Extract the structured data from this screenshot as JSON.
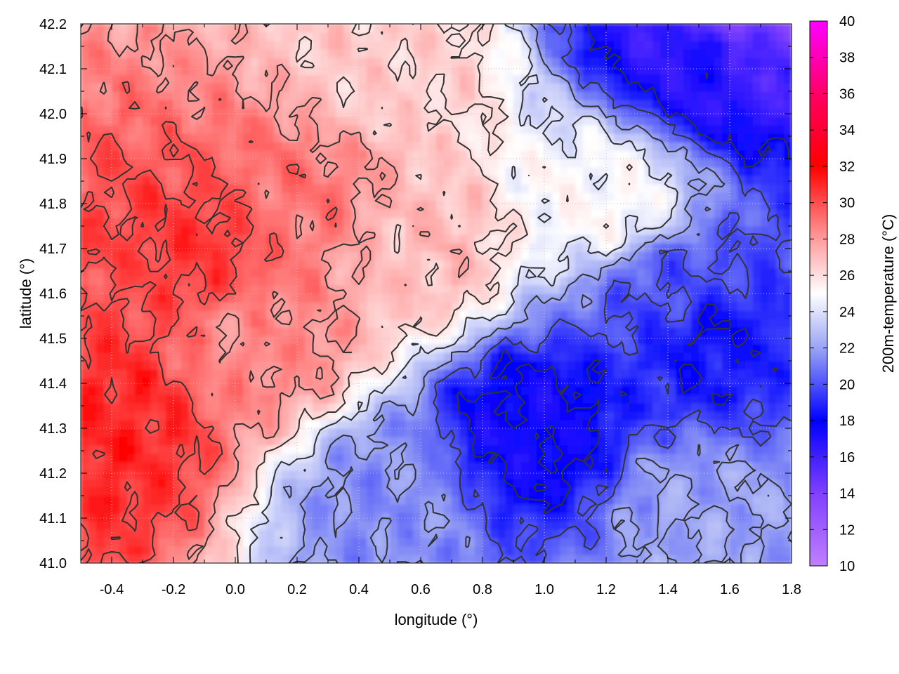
{
  "chart_data": {
    "type": "heatmap",
    "xlabel": "longitude (°)",
    "ylabel": "latitude (°)",
    "colorbar_label": "200m-temperature (°C)",
    "xlim": [
      -0.5,
      1.8
    ],
    "ylim": [
      41.0,
      42.2
    ],
    "x_ticks": [
      "-0.4",
      "-0.2",
      "0.0",
      "0.2",
      "0.4",
      "0.6",
      "0.8",
      "1.0",
      "1.2",
      "1.4",
      "1.6",
      "1.8"
    ],
    "x_tick_values": [
      -0.4,
      -0.2,
      0.0,
      0.2,
      0.4,
      0.6,
      0.8,
      1.0,
      1.2,
      1.4,
      1.6,
      1.8
    ],
    "y_ticks": [
      "41.0",
      "41.1",
      "41.2",
      "41.3",
      "41.4",
      "41.5",
      "41.6",
      "41.7",
      "41.8",
      "41.9",
      "42.0",
      "42.1",
      "42.2"
    ],
    "y_tick_values": [
      41.0,
      41.1,
      41.2,
      41.3,
      41.4,
      41.5,
      41.6,
      41.7,
      41.8,
      41.9,
      42.0,
      42.1,
      42.2
    ],
    "colorbar_range": [
      10,
      40
    ],
    "colorbar_ticks": [
      "10",
      "12",
      "14",
      "16",
      "18",
      "20",
      "22",
      "24",
      "26",
      "28",
      "30",
      "32",
      "34",
      "36",
      "38",
      "40"
    ],
    "colorbar_tick_values": [
      10,
      12,
      14,
      16,
      18,
      20,
      22,
      24,
      26,
      28,
      30,
      32,
      34,
      36,
      38,
      40
    ],
    "colormap": [
      {
        "value": 10,
        "color": "#c080ff"
      },
      {
        "value": 14,
        "color": "#8040ff"
      },
      {
        "value": 18,
        "color": "#0000ff"
      },
      {
        "value": 22,
        "color": "#9aa4f4"
      },
      {
        "value": 25,
        "color": "#ffffff"
      },
      {
        "value": 28,
        "color": "#ff9c9c"
      },
      {
        "value": 32,
        "color": "#ff0000"
      },
      {
        "value": 36,
        "color": "#ff0066"
      },
      {
        "value": 40,
        "color": "#ff00ff"
      }
    ],
    "temperature_field_samples": [
      {
        "lon": -0.4,
        "lat": 41.3,
        "temp": 31.0
      },
      {
        "lon": -0.1,
        "lat": 41.7,
        "temp": 30.5
      },
      {
        "lon": 0.2,
        "lat": 41.8,
        "temp": 29.0
      },
      {
        "lon": 0.1,
        "lat": 41.5,
        "temp": 28.5
      },
      {
        "lon": 0.6,
        "lat": 41.7,
        "temp": 27.0
      },
      {
        "lon": 0.5,
        "lat": 42.1,
        "temp": 26.5
      },
      {
        "lon": 1.2,
        "lat": 41.8,
        "temp": 25.0
      },
      {
        "lon": 1.4,
        "lat": 41.6,
        "temp": 20.0
      },
      {
        "lon": 1.5,
        "lat": 41.5,
        "temp": 18.5
      },
      {
        "lon": 0.95,
        "lat": 41.3,
        "temp": 17.5
      },
      {
        "lon": 1.55,
        "lat": 42.15,
        "temp": 17.0
      },
      {
        "lon": 1.6,
        "lat": 42.2,
        "temp": 14.0
      },
      {
        "lon": 1.5,
        "lat": 41.1,
        "temp": 22.0
      },
      {
        "lon": 0.5,
        "lat": 41.15,
        "temp": 21.5
      }
    ],
    "contours": true,
    "grid": true
  },
  "colors": {
    "contour": "#333333",
    "grid": "#c8c8c8",
    "axis": "#000000",
    "background": "#ffffff"
  }
}
